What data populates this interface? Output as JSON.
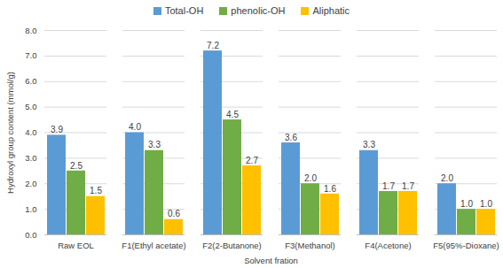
{
  "chart_data": {
    "type": "bar",
    "xlabel": "Solvent fration",
    "ylabel": "Hydroxyl group content (mmol/g)",
    "categories": [
      "Raw EOL",
      "F1(Ethyl acetate)",
      "F2(2-Butanone)",
      "F3(Methanol)",
      "F4(Acetone)",
      "F5(95%-Dioxane)"
    ],
    "series": [
      {
        "name": "Total-OH",
        "color": "#5B9BD5",
        "values": [
          3.9,
          4.0,
          7.2,
          3.6,
          3.3,
          2.0
        ],
        "value_labels": [
          "3.9",
          "4.0",
          "7.2",
          "3.6",
          "3.3",
          "2.0"
        ]
      },
      {
        "name": "phenolic-OH",
        "color": "#70AD47",
        "values": [
          2.5,
          3.3,
          4.5,
          2.0,
          1.7,
          1.0
        ],
        "value_labels": [
          "2.5",
          "3.3",
          "4.5",
          "2.0",
          "1.7",
          "1.0"
        ]
      },
      {
        "name": "Aliphatic",
        "color": "#FFC000",
        "values": [
          1.5,
          0.6,
          2.7,
          1.6,
          1.7,
          1.0
        ],
        "value_labels": [
          "1.5",
          "0.6",
          "2.7",
          "1.6",
          "1.7",
          "1.0"
        ]
      }
    ],
    "ylim": [
      0,
      8
    ],
    "yticks": [
      {
        "value": 0,
        "label": "0.0"
      },
      {
        "value": 1,
        "label": "1.0"
      },
      {
        "value": 2,
        "label": "2.0"
      },
      {
        "value": 3,
        "label": "3.0"
      },
      {
        "value": 4,
        "label": "4.0"
      },
      {
        "value": 5,
        "label": "5.0"
      },
      {
        "value": 6,
        "label": "6.0"
      },
      {
        "value": 7,
        "label": "7.0"
      },
      {
        "value": 8,
        "label": "8.0"
      }
    ],
    "grid": true,
    "legend": "top",
    "data_labels": true
  }
}
